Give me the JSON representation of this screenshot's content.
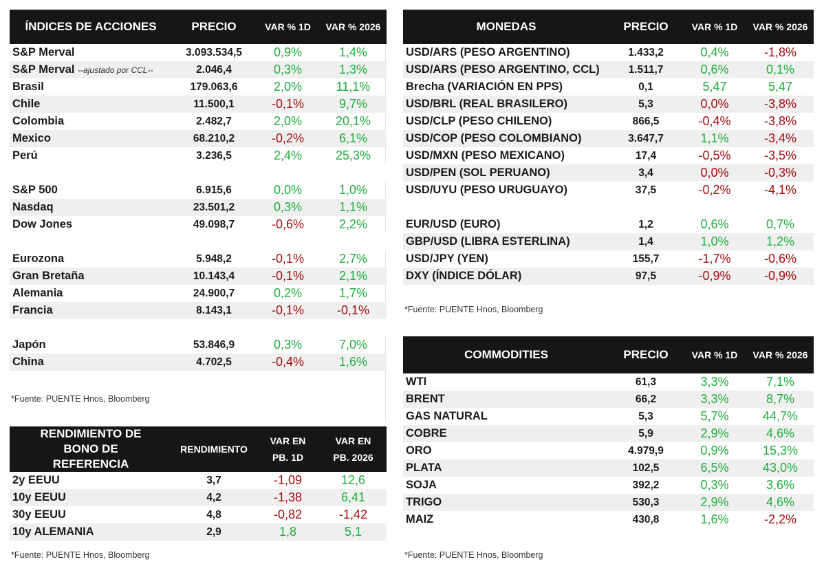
{
  "indices": {
    "headers": [
      "ÍNDICES DE ACCIONES",
      "PRECIO",
      "VAR % 1D",
      "VAR % 2026"
    ],
    "rows": [
      {
        "name": "S&P Merval",
        "price": "3.093.534,5",
        "d1": "0,9%",
        "ytd": "1,4%",
        "d1s": "pos",
        "ytds": "pos"
      },
      {
        "name": "S&P Merval",
        "note": "--ajustado por CCL--",
        "price": "2.046,4",
        "d1": "0,3%",
        "ytd": "1,3%",
        "d1s": "pos",
        "ytds": "pos"
      },
      {
        "name": "Brasil",
        "price": "179.063,6",
        "d1": "2,0%",
        "ytd": "11,1%",
        "d1s": "pos",
        "ytds": "pos"
      },
      {
        "name": "Chile",
        "price": "11.500,1",
        "d1": "-0,1%",
        "ytd": "9,7%",
        "d1s": "neg",
        "ytds": "pos"
      },
      {
        "name": "Colombia",
        "price": "2.482,7",
        "d1": "2,0%",
        "ytd": "20,1%",
        "d1s": "pos",
        "ytds": "pos"
      },
      {
        "name": "Mexico",
        "price": "68.210,2",
        "d1": "-0,2%",
        "ytd": "6,1%",
        "d1s": "neg",
        "ytds": "pos"
      },
      {
        "name": "Perú",
        "price": "3.236,5",
        "d1": "2,4%",
        "ytd": "25,3%",
        "d1s": "pos",
        "ytds": "pos"
      },
      {
        "blank": true
      },
      {
        "name": "S&P 500",
        "price": "6.915,6",
        "d1": "0,0%",
        "ytd": "1,0%",
        "d1s": "pos",
        "ytds": "pos"
      },
      {
        "name": "Nasdaq",
        "price": "23.501,2",
        "d1": "0,3%",
        "ytd": "1,1%",
        "d1s": "pos",
        "ytds": "pos"
      },
      {
        "name": "Dow Jones",
        "price": "49.098,7",
        "d1": "-0,6%",
        "ytd": "2,2%",
        "d1s": "neg",
        "ytds": "pos"
      },
      {
        "blank": true
      },
      {
        "name": "Eurozona",
        "price": "5.948,2",
        "d1": "-0,1%",
        "ytd": "2,7%",
        "d1s": "neg",
        "ytds": "pos"
      },
      {
        "name": "Gran Bretaña",
        "price": "10.143,4",
        "d1": "-0,1%",
        "ytd": "2,1%",
        "d1s": "neg",
        "ytds": "pos"
      },
      {
        "name": "Alemania",
        "price": "24.900,7",
        "d1": "0,2%",
        "ytd": "1,7%",
        "d1s": "pos",
        "ytds": "pos"
      },
      {
        "name": "Francia",
        "price": "8.143,1",
        "d1": "-0,1%",
        "ytd": "-0,1%",
        "d1s": "neg",
        "ytds": "neg"
      },
      {
        "blank": true
      },
      {
        "name": "Japón",
        "price": "53.846,9",
        "d1": "0,3%",
        "ytd": "7,0%",
        "d1s": "pos",
        "ytds": "pos"
      },
      {
        "name": "China",
        "price": "4.702,5",
        "d1": "-0,4%",
        "ytd": "1,6%",
        "d1s": "neg",
        "ytds": "pos"
      }
    ],
    "source": "*Fuente: PUENTE Hnos, Bloomberg"
  },
  "bonds": {
    "headers": [
      "RENDIMIENTO DE BONO DE REFERENCIA",
      "RENDIMIENTO",
      "VAR EN PB. 1D",
      "VAR EN PB. 2026"
    ],
    "rows": [
      {
        "name": "2y EEUU",
        "price": "3,7",
        "d1": "-1,09",
        "ytd": "12,6",
        "d1s": "neg",
        "ytds": "pos"
      },
      {
        "name": "10y EEUU",
        "price": "4,2",
        "d1": "-1,38",
        "ytd": "6,41",
        "d1s": "neg",
        "ytds": "pos"
      },
      {
        "name": "30y EEUU",
        "price": "4,8",
        "d1": "-0,82",
        "ytd": "-1,42",
        "d1s": "neg",
        "ytds": "neg"
      },
      {
        "name": "10y ALEMANIA",
        "price": "2,9",
        "d1": "1,8",
        "ytd": "5,1",
        "d1s": "pos",
        "ytds": "pos"
      }
    ],
    "source": "*Fuente: PUENTE Hnos, Bloomberg"
  },
  "currencies": {
    "headers": [
      "MONEDAS",
      "PRECIO",
      "VAR % 1D",
      "VAR % 2026"
    ],
    "rows": [
      {
        "name": "USD/ARS (PESO ARGENTINO)",
        "price": "1.433,2",
        "d1": "0,4%",
        "ytd": "-1,8%",
        "d1s": "pos",
        "ytds": "neg"
      },
      {
        "name": "USD/ARS (PESO ARGENTINO, CCL)",
        "price": "1.511,7",
        "d1": "0,6%",
        "ytd": "0,1%",
        "d1s": "pos",
        "ytds": "pos"
      },
      {
        "name": "Brecha (VARIACIÓN EN PPS)",
        "price": "0,1",
        "d1": "5,47",
        "ytd": "5,47",
        "d1s": "pos",
        "ytds": "pos"
      },
      {
        "name": "USD/BRL (REAL BRASILERO)",
        "price": "5,3",
        "d1": "0,0%",
        "ytd": "-3,8%",
        "d1s": "neg",
        "ytds": "neg"
      },
      {
        "name": "USD/CLP (PESO CHILENO)",
        "price": "866,5",
        "d1": "-0,4%",
        "ytd": "-3,8%",
        "d1s": "neg",
        "ytds": "neg"
      },
      {
        "name": "USD/COP (PESO COLOMBIANO)",
        "price": "3.647,7",
        "d1": "1,1%",
        "ytd": "-3,4%",
        "d1s": "pos",
        "ytds": "neg"
      },
      {
        "name": "USD/MXN (PESO MEXICANO)",
        "price": "17,4",
        "d1": "-0,5%",
        "ytd": "-3,5%",
        "d1s": "neg",
        "ytds": "neg"
      },
      {
        "name": "USD/PEN (SOL PERUANO)",
        "price": "3,4",
        "d1": "0,0%",
        "ytd": "-0,3%",
        "d1s": "neg",
        "ytds": "neg"
      },
      {
        "name": "USD/UYU (PESO URUGUAYO)",
        "price": "37,5",
        "d1": "-0,2%",
        "ytd": "-4,1%",
        "d1s": "neg",
        "ytds": "neg"
      },
      {
        "blank": true
      },
      {
        "name": "EUR/USD (EURO)",
        "price": "1,2",
        "d1": "0,6%",
        "ytd": "0,7%",
        "d1s": "pos",
        "ytds": "pos"
      },
      {
        "name": "GBP/USD (LIBRA ESTERLINA)",
        "price": "1,4",
        "d1": "1,0%",
        "ytd": "1,2%",
        "d1s": "pos",
        "ytds": "pos"
      },
      {
        "name": "USD/JPY (YEN)",
        "price": "155,7",
        "d1": "-1,7%",
        "ytd": "-0,6%",
        "d1s": "neg",
        "ytds": "neg"
      },
      {
        "name": "DXY (ÍNDICE DÓLAR)",
        "price": "97,5",
        "d1": "-0,9%",
        "ytd": "-0,9%",
        "d1s": "neg",
        "ytds": "neg"
      }
    ],
    "source": "*Fuente: PUENTE Hnos, Bloomberg"
  },
  "commodities": {
    "headers": [
      "COMMODITIES",
      "PRECIO",
      "VAR % 1D",
      "VAR % 2026"
    ],
    "rows": [
      {
        "name": "WTI",
        "price": "61,3",
        "d1": "3,3%",
        "ytd": "7,1%",
        "d1s": "pos",
        "ytds": "pos"
      },
      {
        "name": "BRENT",
        "price": "66,2",
        "d1": "3,3%",
        "ytd": "8,7%",
        "d1s": "pos",
        "ytds": "pos"
      },
      {
        "name": "GAS NATURAL",
        "price": "5,3",
        "d1": "5,7%",
        "ytd": "44,7%",
        "d1s": "pos",
        "ytds": "pos"
      },
      {
        "name": "COBRE",
        "price": "5,9",
        "d1": "2,9%",
        "ytd": "4,6%",
        "d1s": "pos",
        "ytds": "pos"
      },
      {
        "name": "ORO",
        "price": "4.979,9",
        "d1": "0,9%",
        "ytd": "15,3%",
        "d1s": "pos",
        "ytds": "pos"
      },
      {
        "name": "PLATA",
        "price": "102,5",
        "d1": "6,5%",
        "ytd": "43,0%",
        "d1s": "pos",
        "ytds": "pos"
      },
      {
        "name": "SOJA",
        "price": "392,2",
        "d1": "0,3%",
        "ytd": "3,6%",
        "d1s": "pos",
        "ytds": "pos"
      },
      {
        "name": "TRIGO",
        "price": "530,3",
        "d1": "2,9%",
        "ytd": "4,6%",
        "d1s": "pos",
        "ytds": "pos"
      },
      {
        "name": "MAIZ",
        "price": "430,8",
        "d1": "1,6%",
        "ytd": "-2,2%",
        "d1s": "pos",
        "ytds": "neg"
      }
    ],
    "source": "*Fuente: PUENTE Hnos, Bloomberg"
  },
  "colors": {
    "positive": "#1fae3c",
    "negative": "#a50d0d",
    "header_bg": "#161616",
    "row_alt": "#efefef"
  }
}
